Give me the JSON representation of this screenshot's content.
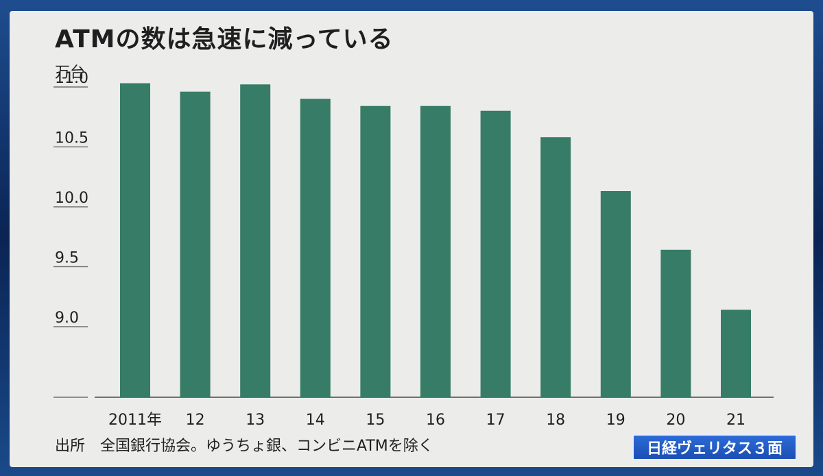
{
  "title": "ATMの数は急速に減っている",
  "unit_label": "万台",
  "source": "出所　全国銀行協会。ゆうちょ銀、コンビニATMを除く",
  "badge": "日経ヴェリタス３面",
  "colors": {
    "bar": "#367c66",
    "panel": "#ececeb",
    "badge": "#1f5cc4"
  },
  "chart_data": {
    "type": "bar",
    "title": "ATMの数は急速に減っている",
    "ylabel": "万台",
    "xlabel": "",
    "categories": [
      "2011年",
      "12",
      "13",
      "14",
      "15",
      "16",
      "17",
      "18",
      "19",
      "20",
      "21"
    ],
    "values": [
      11.02,
      10.95,
      11.01,
      10.89,
      10.83,
      10.83,
      10.79,
      10.57,
      10.12,
      9.63,
      9.13
    ],
    "ylim": [
      8.4,
      11.0
    ],
    "yticks": [
      "11.0",
      "10.5",
      "10.0",
      "9.5",
      "9.0"
    ],
    "ytick_values": [
      11.0,
      10.5,
      10.0,
      9.5,
      9.0
    ],
    "grid": false,
    "legend": "none"
  }
}
